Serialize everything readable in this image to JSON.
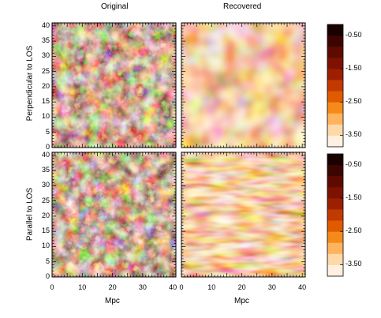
{
  "column_titles": [
    "Original",
    "Recovered"
  ],
  "row_titles": [
    "Perpendicular to LOS",
    "Parallel to LOS"
  ],
  "xlabel": "Mpc",
  "y_ticks": [
    "0",
    "5",
    "10",
    "15",
    "20",
    "25",
    "30",
    "35",
    "40"
  ],
  "x_ticks": [
    "0",
    "10",
    "20",
    "30",
    "40"
  ],
  "colorbar_ticks": [
    "-0.50",
    "-1.50",
    "-2.50",
    "-3.50"
  ],
  "colorbar_colors": [
    "#1a0000",
    "#3d0500",
    "#5e0a00",
    "#7d1200",
    "#9c1f00",
    "#c23a00",
    "#e05b00",
    "#f58a1a",
    "#ffb35c",
    "#ffd8a8",
    "#fff0e0"
  ],
  "panels": [
    {
      "id": "perp-original",
      "kind": "filaments",
      "seed": 7
    },
    {
      "id": "perp-recovered",
      "kind": "blobs",
      "seed": 19
    },
    {
      "id": "par-original",
      "kind": "filaments",
      "seed": 31
    },
    {
      "id": "par-recovered",
      "kind": "streaks",
      "seed": 53
    }
  ]
}
